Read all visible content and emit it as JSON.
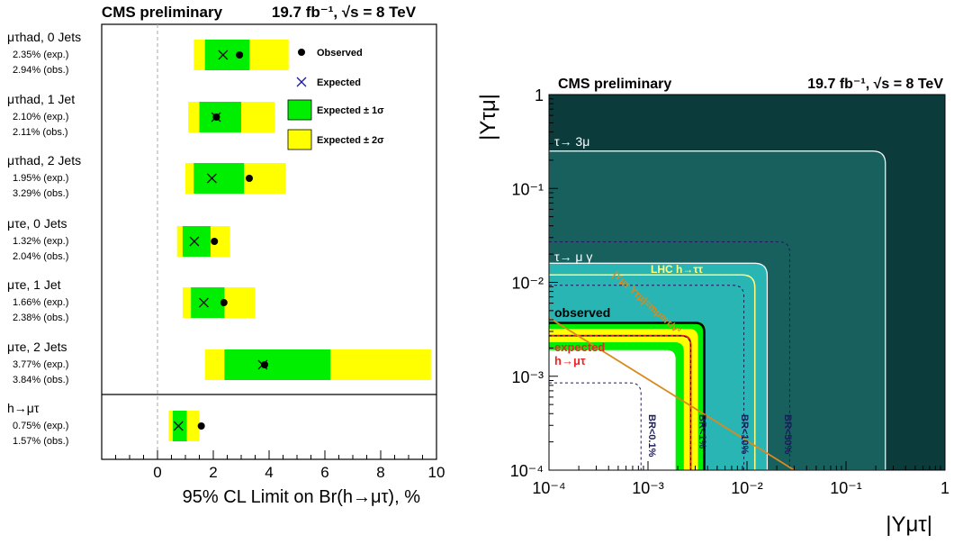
{
  "chart_data": [
    {
      "type": "bar",
      "orientation": "horizontal",
      "header_left": "CMS preliminary",
      "header_right": "19.7 fb⁻¹, √s = 8 TeV",
      "xlabel": "95% CL Limit on Br(h→μτ), %",
      "xlim": [
        -2,
        10
      ],
      "x_ticks": [
        "0",
        "2",
        "4",
        "6",
        "8",
        "10"
      ],
      "x_tick_values": [
        0,
        2,
        4,
        6,
        8,
        10
      ],
      "grid": false,
      "reference_line_x": 0,
      "legend_position": "top-right",
      "legend": {
        "observed": "Observed",
        "expected": "Expected",
        "band1": "Expected ± 1σ",
        "band2": "Expected ± 2σ"
      },
      "colors": {
        "band1": "#00ee00",
        "band2": "#ffff00",
        "observed": "#000000",
        "expected": "#1a1a99"
      },
      "categories": [
        {
          "label": "μτhad, 0 Jets",
          "exp_text": "2.35% (exp.)",
          "obs_text": "2.94% (obs.)",
          "expected": 2.35,
          "observed": 2.94,
          "band1": [
            1.7,
            3.3
          ],
          "band2": [
            1.3,
            4.7
          ]
        },
        {
          "label": "μτhad, 1 Jet",
          "exp_text": "2.10% (exp.)",
          "obs_text": "2.11% (obs.)",
          "expected": 2.1,
          "observed": 2.11,
          "band1": [
            1.5,
            3.0
          ],
          "band2": [
            1.1,
            4.2
          ]
        },
        {
          "label": "μτhad, 2 Jets",
          "exp_text": "1.95% (exp.)",
          "obs_text": "3.29% (obs.)",
          "expected": 1.95,
          "observed": 3.29,
          "band1": [
            1.3,
            3.1
          ],
          "band2": [
            1.0,
            4.6
          ]
        },
        {
          "label": "μτe, 0 Jets",
          "exp_text": "1.32% (exp.)",
          "obs_text": "2.04% (obs.)",
          "expected": 1.32,
          "observed": 2.04,
          "band1": [
            0.9,
            1.9
          ],
          "band2": [
            0.7,
            2.6
          ]
        },
        {
          "label": "μτe, 1 Jet",
          "exp_text": "1.66% (exp.)",
          "obs_text": "2.38% (obs.)",
          "expected": 1.66,
          "observed": 2.38,
          "band1": [
            1.2,
            2.4
          ],
          "band2": [
            0.9,
            3.5
          ]
        },
        {
          "label": "μτe, 2 Jets",
          "exp_text": "3.77% (exp.)",
          "obs_text": "3.84% (obs.)",
          "expected": 3.77,
          "observed": 3.84,
          "band1": [
            2.4,
            6.2
          ],
          "band2": [
            1.7,
            9.8
          ]
        },
        {
          "label": "h→μτ",
          "exp_text": "0.75% (exp.)",
          "obs_text": "1.57% (obs.)",
          "expected": 0.75,
          "observed": 1.57,
          "band1": [
            0.55,
            1.05
          ],
          "band2": [
            0.4,
            1.5
          ]
        }
      ]
    },
    {
      "type": "area",
      "header_left": "CMS preliminary",
      "header_right": "19.7 fb⁻¹, √s = 8 TeV",
      "xlabel": "|Yμτ|",
      "ylabel": "|Yτμ|",
      "xscale": "log",
      "yscale": "log",
      "xlim": [
        0.0001,
        1
      ],
      "ylim": [
        0.0001,
        1
      ],
      "x_ticks": [
        "10⁻⁴",
        "10⁻³",
        "10⁻²",
        "10⁻¹",
        "1"
      ],
      "y_ticks": [
        "10⁻⁴",
        "10⁻³",
        "10⁻²",
        "10⁻¹",
        "1"
      ],
      "tick_values": [
        0.0001,
        0.001,
        0.01,
        0.1,
        1
      ],
      "grid": false,
      "regions": [
        {
          "label": "τ→ 3μ",
          "limit": 0.25,
          "color": "#0c3b3b",
          "label_color": "#ffffff"
        },
        {
          "label": "τ→ μ γ",
          "limit": 0.016,
          "color": "#18605e",
          "label_color": "#ffffff"
        },
        {
          "label": "LHC h→ττ",
          "limit": 0.012,
          "color": "#2ab5b5",
          "label_color": "#ffff80"
        }
      ],
      "exclusion_fill_colors": {
        "observed": "#99f2f2",
        "two_sigma": "#00ee00",
        "one_sigma": "#ffff00"
      },
      "observed_label": "observed",
      "observed_limit": 0.0037,
      "expected_label": "expected",
      "expected_limit": 0.0027,
      "expected_band1": [
        0.0023,
        0.0032
      ],
      "expected_band2": [
        0.0019,
        0.0038
      ],
      "signal_label": "h→μτ",
      "naturalness_label": "|Yμτ Yτμ|=mμmτ/v²",
      "naturalness_color": "#d98a1e",
      "br_contours": [
        {
          "label": "BR<0.1%",
          "limit": 0.00085
        },
        {
          "label": "BR<1%",
          "limit": 0.0027
        },
        {
          "label": "BR<10%",
          "limit": 0.0093
        },
        {
          "label": "BR<50%",
          "limit": 0.027
        }
      ]
    }
  ]
}
